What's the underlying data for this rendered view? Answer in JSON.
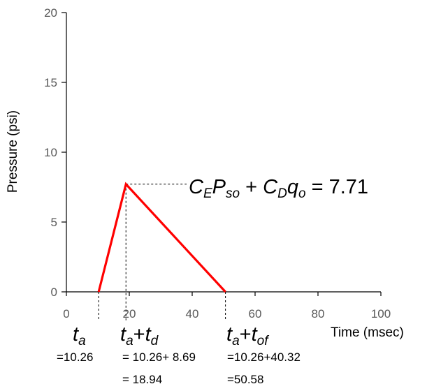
{
  "chart_data": {
    "type": "line",
    "xlabel": "Time (msec)",
    "ylabel": "Pressure (psi)",
    "xlim": [
      0,
      100
    ],
    "ylim": [
      0,
      20
    ],
    "x_ticks": [
      0,
      20,
      40,
      60,
      80,
      100
    ],
    "y_ticks": [
      0,
      5,
      10,
      15,
      20
    ],
    "grid": false,
    "series": [
      {
        "color": "#ff0000",
        "x": [
          10.26,
          18.94,
          50.58
        ],
        "y": [
          0,
          7.71,
          0
        ]
      }
    ],
    "annotations": {
      "peak": {
        "x": 18.94,
        "y": 7.71,
        "symbols": [
          {
            "t": "C",
            "style": "italic"
          },
          {
            "t": "E",
            "style": "italic-sub"
          },
          {
            "t": "P",
            "style": "italic"
          },
          {
            "t": "so",
            "style": "italic-sub"
          },
          {
            "t": " + ",
            "style": "normal"
          },
          {
            "t": "C",
            "style": "italic"
          },
          {
            "t": "D",
            "style": "italic-sub"
          },
          {
            "t": "q",
            "style": "italic"
          },
          {
            "t": "o",
            "style": "italic-sub"
          },
          {
            "t": " = 7.71",
            "style": "normal"
          }
        ]
      },
      "ta": {
        "x": 10.26,
        "symbols": [
          {
            "t": "t",
            "style": "italic"
          },
          {
            "t": "a",
            "style": "italic-sub"
          }
        ],
        "lines": [
          "=10.26"
        ]
      },
      "td": {
        "x": 18.94,
        "symbols": [
          {
            "t": "t",
            "style": "italic"
          },
          {
            "t": "a",
            "style": "italic-sub"
          },
          {
            "t": "+",
            "style": "normal"
          },
          {
            "t": "t",
            "style": "italic"
          },
          {
            "t": "d",
            "style": "italic-sub"
          }
        ],
        "lines": [
          "= 10.26+ 8.69",
          "= 18.94"
        ]
      },
      "tof": {
        "x": 50.58,
        "symbols": [
          {
            "t": "t",
            "style": "italic"
          },
          {
            "t": "a",
            "style": "italic-sub"
          },
          {
            "t": "+",
            "style": "normal"
          },
          {
            "t": "t",
            "style": "italic"
          },
          {
            "t": "of",
            "style": "italic-sub"
          }
        ],
        "lines": [
          "=10.26+40.32",
          "=50.58"
        ]
      }
    }
  }
}
